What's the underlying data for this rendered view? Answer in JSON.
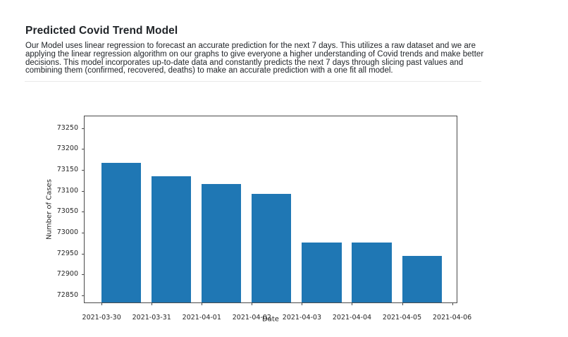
{
  "page": {
    "title": "Predicted Covid Trend Model",
    "description": "Our Model uses linear regression to forecast an accurate prediction for the next 7 days. This utilizes a raw dataset and we are applying the linear regression algorithm on our graphs to give everyone a higher understanding of Covid trends and make better decisions. This model incorporates up-to-date data and constantly predicts the next 7 days through slicing past values and combining them (confirmed, recovered, deaths) to make an accurate prediction with a one fit all model."
  },
  "chart_data": {
    "type": "bar",
    "title": "",
    "xlabel": "Date",
    "ylabel": "Number of Cases",
    "categories": [
      "2021-03-30",
      "2021-03-31",
      "2021-04-01",
      "2021-04-02",
      "2021-04-03",
      "2021-04-04",
      "2021-04-05",
      "2021-04-06"
    ],
    "values": [
      73167,
      73135,
      73117,
      73092,
      72977,
      72977,
      72945,
      null
    ],
    "bar_color": "#1f77b4",
    "ylim": [
      72833,
      73278
    ],
    "y_ticks": [
      72850,
      72900,
      72950,
      73000,
      73050,
      73100,
      73150,
      73200,
      73250
    ],
    "xlim_days": [
      -0.34,
      7.09
    ],
    "bar_width_days": 0.79,
    "bar_align": "edge",
    "grid": false,
    "legend_position": "none"
  }
}
